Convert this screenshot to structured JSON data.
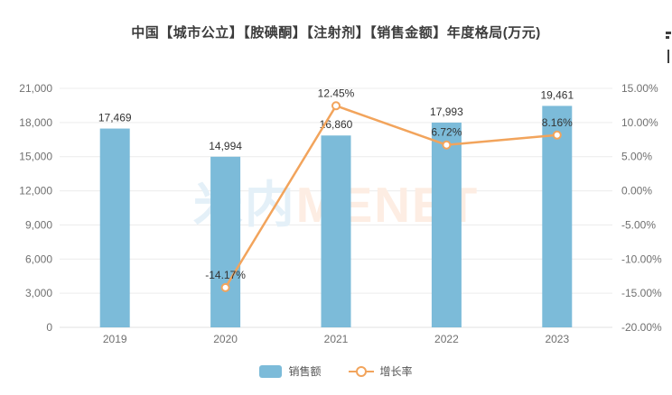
{
  "title": "中国【城市公立】【胺碘酮】【注射剂】【销售金额】年度格局(万元)",
  "legend": {
    "bar_label": "销售额",
    "line_label": "增长率"
  },
  "watermark": {
    "part1": "米内",
    "part2": "MENET"
  },
  "colors": {
    "bar": "#7CBBD9",
    "line": "#F2A45C",
    "grid": "#ECECEC",
    "axis_line": "#E0E0E0",
    "axis_text": "#707070",
    "label_text": "#333333",
    "watermark_blue": "#E4F0F8",
    "watermark_orange": "#FDEDE3"
  },
  "chart_data": {
    "type": "bar+line",
    "title": "中国【城市公立】【胺碘酮】【注射剂】【销售金额】年度格局(万元)",
    "categories": [
      "2019",
      "2020",
      "2021",
      "2022",
      "2023"
    ],
    "series": [
      {
        "name": "销售额",
        "type": "bar",
        "axis": "left",
        "values": [
          17469,
          14994,
          16860,
          17993,
          19461
        ],
        "labels": [
          "17,469",
          "14,994",
          "16,860",
          "17,993",
          "19,461"
        ]
      },
      {
        "name": "增长率",
        "type": "line",
        "axis": "right",
        "values": [
          null,
          -14.17,
          12.45,
          6.72,
          8.16
        ],
        "labels": [
          null,
          "-14.17%",
          "12.45%",
          "6.72%",
          "8.16%"
        ]
      }
    ],
    "left_axis": {
      "min": 0,
      "max": 21000,
      "step": 3000,
      "tick_labels": [
        "21,000",
        "18,000",
        "15,000",
        "12,000",
        "9,000",
        "6,000",
        "3,000",
        "0"
      ]
    },
    "right_axis": {
      "min": -20,
      "max": 15,
      "step": 5,
      "tick_labels": [
        "15.00%",
        "10.00%",
        "5.00%",
        "0.00%",
        "-5.00%",
        "-10.00%",
        "-15.00%",
        "-20.00%"
      ]
    },
    "grid": true,
    "legend_position": "bottom"
  }
}
